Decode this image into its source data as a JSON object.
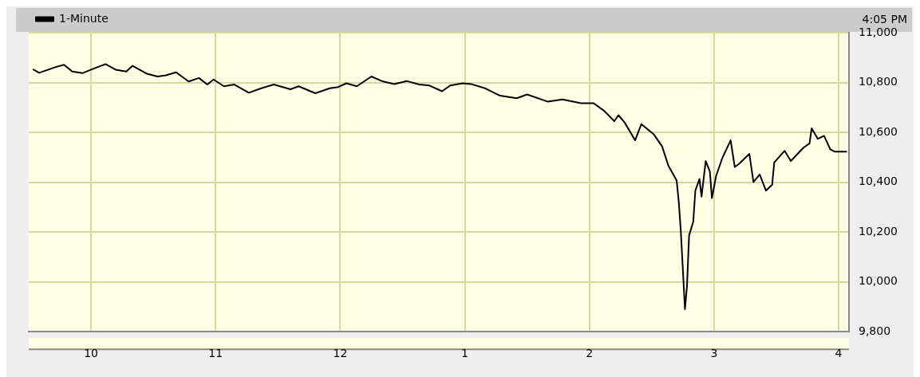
{
  "chart_data": {
    "type": "line",
    "annotations": [
      "4:05 PM"
    ],
    "x": [
      "--05-06T09:32",
      "--05-06T09:35",
      "--05-06T09:43",
      "--05-06T09:47",
      "--05-06T09:51",
      "--05-06T09:56",
      "--05-06T10:01",
      "--05-06T10:07",
      "--05-06T10:12",
      "--05-06T10:17",
      "--05-06T10:20",
      "--05-06T10:27",
      "--05-06T10:32",
      "--05-06T10:36",
      "--05-06T10:41",
      "--05-06T10:47",
      "--05-06T10:52",
      "--05-06T10:56",
      "--05-06T10:59",
      "--05-06T11:04",
      "--05-06T11:09",
      "--05-06T11:16",
      "--05-06T11:22",
      "--05-06T11:28",
      "--05-06T11:36",
      "--05-06T11:40",
      "--05-06T11:48",
      "--05-06T11:55",
      "--05-06T11:59",
      "--05-06T12:03",
      "--05-06T12:08",
      "--05-06T12:15",
      "--05-06T12:20",
      "--05-06T12:26",
      "--05-06T12:32",
      "--05-06T12:38",
      "--05-06T12:43",
      "--05-06T12:49",
      "--05-06T12:53",
      "--05-06T12:59",
      "--05-06T13:03",
      "--05-06T13:10",
      "--05-06T13:17",
      "--05-06T13:25",
      "--05-06T13:30",
      "--05-06T13:40",
      "--05-06T13:47",
      "--05-06T13:56",
      "--05-06T14:02",
      "--05-06T14:07",
      "--05-06T14:12",
      "--05-06T14:14",
      "--05-06T14:17",
      "--05-06T14:22",
      "--05-06T14:25",
      "--05-06T14:31",
      "--05-06T14:35",
      "--05-06T14:38",
      "--05-06T14:42",
      "--05-06T14:43",
      "--05-06T14:44",
      "--05-06T14:45",
      "--05-06T14:46",
      "--05-06T14:47",
      "--05-06T14:48",
      "--05-06T14:50",
      "--05-06T14:51",
      "--05-06T14:53",
      "--05-06T14:54",
      "--05-06T14:56",
      "--05-06T14:58",
      "--05-06T14:59",
      "--05-06T15:01",
      "--05-06T15:04",
      "--05-06T15:08",
      "--05-06T15:10",
      "--05-06T15:12",
      "--05-06T15:17",
      "--05-06T15:19",
      "--05-06T15:22",
      "--05-06T15:25",
      "--05-06T15:28",
      "--05-06T15:29",
      "--05-06T15:34",
      "--05-06T15:37",
      "--05-06T15:43",
      "--05-06T15:46",
      "--05-06T15:47",
      "--05-06T15:50",
      "--05-06T15:53",
      "--05-06T15:56",
      "--05-06T15:58",
      "--05-06T16:04"
    ],
    "series": [
      {
        "name": "1-Minute",
        "color": "#000000",
        "values": [
          10853,
          10839,
          10862,
          10871,
          10844,
          10838,
          10855,
          10874,
          10851,
          10844,
          10867,
          10835,
          10824,
          10829,
          10841,
          10804,
          10818,
          10792,
          10812,
          10785,
          10792,
          10759,
          10777,
          10792,
          10773,
          10785,
          10757,
          10777,
          10782,
          10797,
          10785,
          10824,
          10806,
          10794,
          10806,
          10792,
          10788,
          10765,
          10788,
          10797,
          10794,
          10776,
          10747,
          10737,
          10752,
          10723,
          10732,
          10717,
          10717,
          10687,
          10645,
          10669,
          10639,
          10568,
          10633,
          10592,
          10544,
          10467,
          10407,
          10324,
          10205,
          10050,
          9890,
          9985,
          10187,
          10241,
          10366,
          10413,
          10342,
          10485,
          10443,
          10336,
          10425,
          10497,
          10568,
          10461,
          10473,
          10514,
          10401,
          10431,
          10366,
          10390,
          10479,
          10526,
          10485,
          10538,
          10556,
          10616,
          10574,
          10586,
          10532,
          10523,
          10523
        ]
      }
    ],
    "xlim": [
      "--05-06T09:30",
      "--05-06T16:05"
    ],
    "xticks": [
      {
        "value": "--05-06T10:00",
        "label": "10"
      },
      {
        "value": "--05-06T11:00",
        "label": "11"
      },
      {
        "value": "--05-06T12:00",
        "label": "12"
      },
      {
        "value": "--05-06T13:00",
        "label": "1"
      },
      {
        "value": "--05-06T14:00",
        "label": "2"
      },
      {
        "value": "--05-06T15:00",
        "label": "3"
      },
      {
        "value": "--05-06T16:00",
        "label": "4"
      }
    ],
    "ylim": [
      9800,
      11000
    ],
    "yticks": [
      {
        "value": 9800,
        "label": "9,800"
      },
      {
        "value": 10000,
        "label": "10,000"
      },
      {
        "value": 10200,
        "label": "10,200"
      },
      {
        "value": 10400,
        "label": "10,400"
      },
      {
        "value": 10600,
        "label": "10,600"
      },
      {
        "value": 10800,
        "label": "10,800"
      },
      {
        "value": 11000,
        "label": "11,000"
      }
    ],
    "grid": true,
    "legend": "top left",
    "marker": "none",
    "line_style": "solid"
  }
}
